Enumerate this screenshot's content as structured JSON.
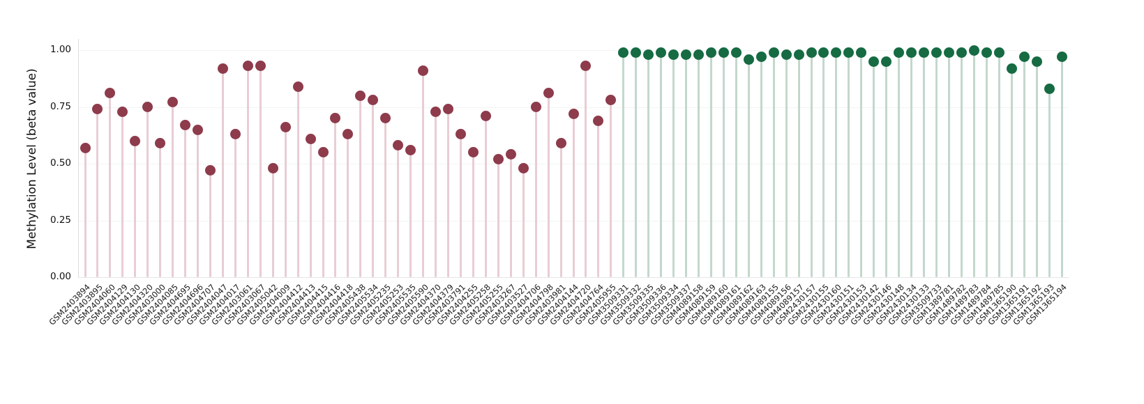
{
  "figure": {
    "background": "#ffffff"
  },
  "chart_data": {
    "type": "lollipop",
    "title": "",
    "xlabel": "",
    "ylabel": "Methylation Level (beta value)",
    "ylim": [
      0,
      1.05
    ],
    "ytick_values": [
      0,
      0.25,
      0.5,
      0.75,
      1.0
    ],
    "ytick_labels": [
      "0.00",
      "0.25",
      "0.50",
      "0.75",
      "1.00"
    ],
    "grid": "horizontal-faint",
    "legend": "none",
    "groups": [
      {
        "name": "group-1-low-methylation",
        "dot_color": "#8e3b4c",
        "stem_color": "#e8cdd4"
      },
      {
        "name": "group-2-high-methylation",
        "dot_color": "#166b42",
        "stem_color": "#c3d8cc"
      }
    ],
    "group_counts": [
      43,
      36
    ],
    "categories": [
      "GSM2403894",
      "GSM2403895",
      "GSM2404060",
      "GSM2404129",
      "GSM2404130",
      "GSM2404320",
      "GSM2403000",
      "GSM2404085",
      "GSM2404695",
      "GSM2404696",
      "GSM2404707",
      "GSM2404047",
      "GSM2404017",
      "GSM2403061",
      "GSM2403067",
      "GSM2405042",
      "GSM2404009",
      "GSM2404412",
      "GSM2404413",
      "GSM2404415",
      "GSM2404416",
      "GSM2404418",
      "GSM2405438",
      "GSM2405534",
      "GSM2405235",
      "GSM2405253",
      "GSM2405535",
      "GSM2405590",
      "GSM2404370",
      "GSM2404379",
      "GSM2403791",
      "GSM2404255",
      "GSM2405258",
      "GSM2405255",
      "GSM2403267",
      "GSM2403527",
      "GSM2404706",
      "GSM2404798",
      "GSM2403981",
      "GSM2404144",
      "GSM2404720",
      "GSM2404764",
      "GSM2405955",
      "GSM3509331",
      "GSM3509332",
      "GSM3509335",
      "GSM3509336",
      "GSM3509334",
      "GSM3509337",
      "GSM4089158",
      "GSM4089159",
      "GSM4089160",
      "GSM4089161",
      "GSM4089162",
      "GSM4089163",
      "GSM4089155",
      "GSM4089156",
      "GSM4089157",
      "GSM2430157",
      "GSM2430155",
      "GSM2430160",
      "GSM2430151",
      "GSM2430153",
      "GSM2430142",
      "GSM2430146",
      "GSM2430148",
      "GSM2430134",
      "GSM2430133",
      "GSM3509733",
      "GSM1389781",
      "GSM1489782",
      "GSM1489783",
      "GSM1489784",
      "GSM1489785",
      "GSM1365190",
      "GSM1365191",
      "GSM1365192",
      "GSM1365193",
      "GSM1365194"
    ],
    "values": [
      0.57,
      0.74,
      0.81,
      0.73,
      0.6,
      0.75,
      0.59,
      0.77,
      0.67,
      0.65,
      0.47,
      0.92,
      0.63,
      0.93,
      0.93,
      0.48,
      0.66,
      0.84,
      0.61,
      0.55,
      0.7,
      0.63,
      0.8,
      0.78,
      0.7,
      0.58,
      0.56,
      0.91,
      0.73,
      0.74,
      0.63,
      0.55,
      0.71,
      0.52,
      0.54,
      0.48,
      0.75,
      0.81,
      0.59,
      0.72,
      0.93,
      0.69,
      0.78,
      0.99,
      0.99,
      0.98,
      0.99,
      0.98,
      0.98,
      0.98,
      0.99,
      0.99,
      0.99,
      0.96,
      0.97,
      0.99,
      0.98,
      0.98,
      0.99,
      0.99,
      0.99,
      0.99,
      0.99,
      0.95,
      0.95,
      0.99,
      0.99,
      0.99,
      0.99,
      0.99,
      0.99,
      1.0,
      0.99,
      0.99,
      0.92,
      0.97,
      0.95,
      0.83,
      0.97
    ]
  }
}
